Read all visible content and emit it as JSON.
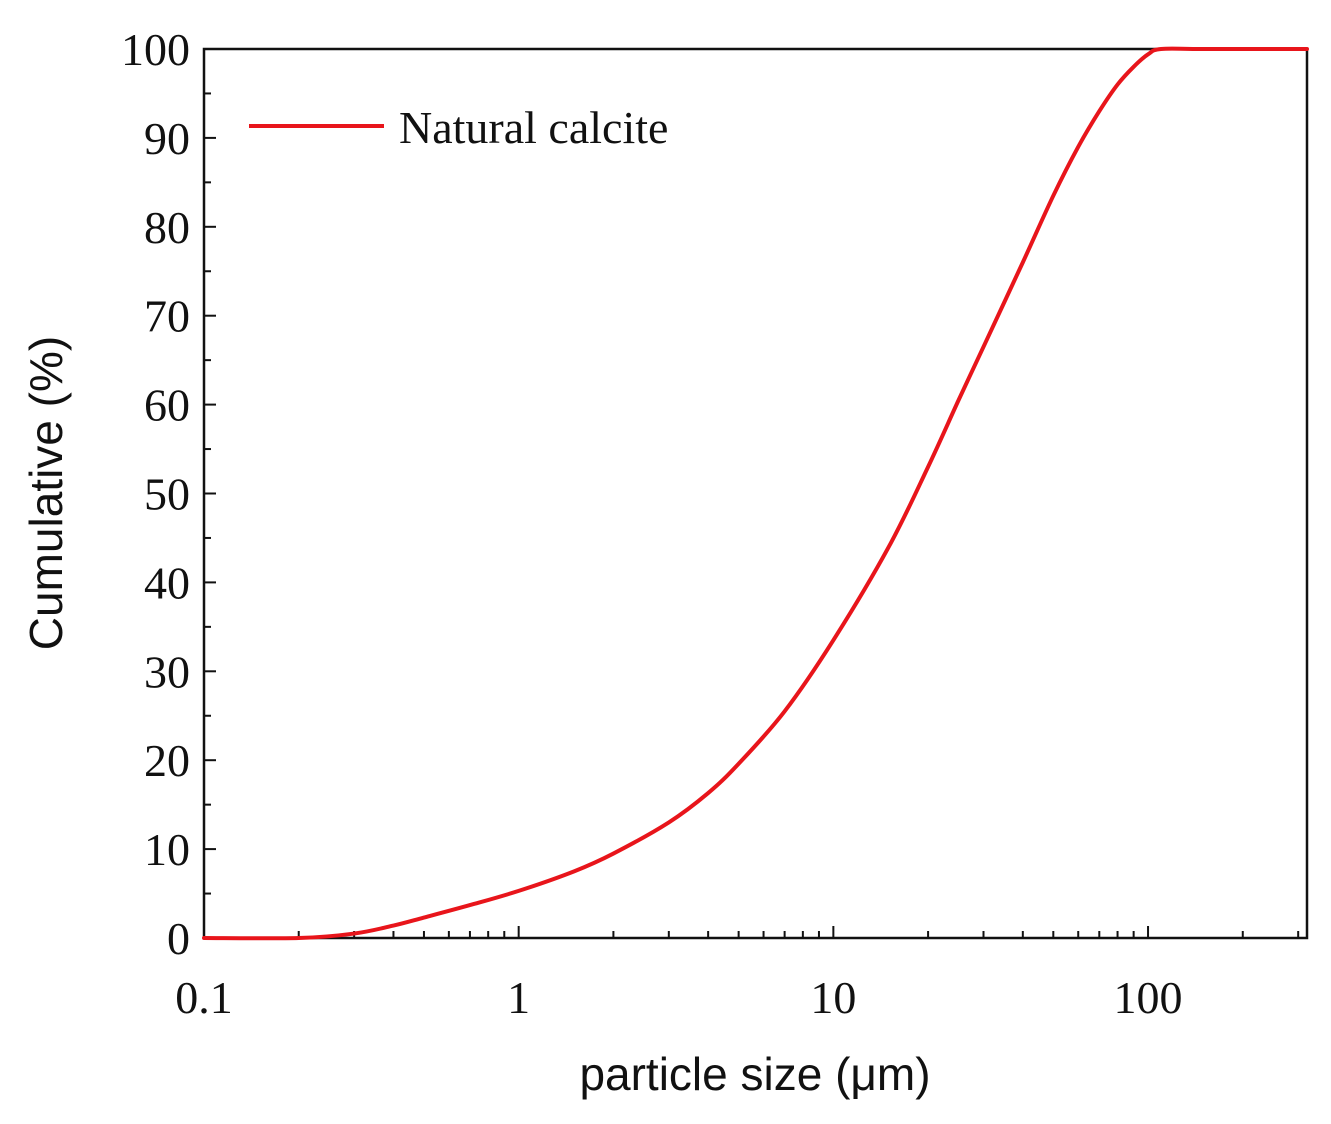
{
  "chart_data": {
    "type": "line",
    "xlabel": "particle size (μm)",
    "ylabel": "Cumulative (%)",
    "x_scale": "log",
    "xlim": [
      0.1,
      320
    ],
    "ylim": [
      0,
      100
    ],
    "x_ticks": [
      {
        "value": 0.1,
        "label": "0.1"
      },
      {
        "value": 1,
        "label": "1"
      },
      {
        "value": 10,
        "label": "10"
      },
      {
        "value": 100,
        "label": "100"
      }
    ],
    "y_ticks": [
      {
        "value": 0,
        "label": "0"
      },
      {
        "value": 10,
        "label": "10"
      },
      {
        "value": 20,
        "label": "20"
      },
      {
        "value": 30,
        "label": "30"
      },
      {
        "value": 40,
        "label": "40"
      },
      {
        "value": 50,
        "label": "50"
      },
      {
        "value": 60,
        "label": "60"
      },
      {
        "value": 70,
        "label": "70"
      },
      {
        "value": 80,
        "label": "80"
      },
      {
        "value": 90,
        "label": "90"
      },
      {
        "value": 100,
        "label": "100"
      }
    ],
    "grid": false,
    "legend": {
      "position": "top-left"
    },
    "series": [
      {
        "name": "Natural calcite",
        "color": "#e8151b",
        "points": [
          [
            0.1,
            0
          ],
          [
            0.2,
            0
          ],
          [
            0.3,
            0.5
          ],
          [
            0.4,
            1.4
          ],
          [
            0.5,
            2.3
          ],
          [
            0.7,
            3.7
          ],
          [
            1,
            5.3
          ],
          [
            1.5,
            7.5
          ],
          [
            2,
            9.5
          ],
          [
            3,
            13
          ],
          [
            4,
            16.3
          ],
          [
            5,
            19.6
          ],
          [
            7,
            25.5
          ],
          [
            10,
            33.5
          ],
          [
            15,
            44
          ],
          [
            20,
            53
          ],
          [
            25,
            60.5
          ],
          [
            30,
            66.5
          ],
          [
            40,
            76
          ],
          [
            50,
            83.5
          ],
          [
            60,
            89
          ],
          [
            70,
            93
          ],
          [
            80,
            96
          ],
          [
            90,
            98
          ],
          [
            100,
            99.4
          ],
          [
            110,
            100
          ],
          [
            150,
            100
          ],
          [
            320,
            100
          ]
        ]
      }
    ]
  }
}
